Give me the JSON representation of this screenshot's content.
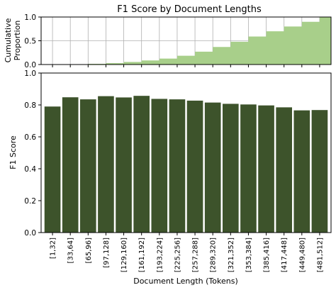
{
  "chart_data": [
    {
      "type": "area",
      "title": "F1 Score by Document Lengths",
      "xlabel": "",
      "ylabel_lines": [
        "Cumulative",
        "Proportion"
      ],
      "ylim": [
        0,
        1.0
      ],
      "yticks": [
        "0.0",
        "0.5",
        "1.0"
      ],
      "grid": true,
      "step": "post",
      "color": "#a8cf8a",
      "categories": [
        "[1,32]",
        "[33,64]",
        "[65,96]",
        "[97,128]",
        "[129,160]",
        "[161,192]",
        "[193,224]",
        "[225,256]",
        "[257,288]",
        "[289,320]",
        "[321,352]",
        "[353,384]",
        "[385,416]",
        "[417,448]",
        "[449,480]",
        "[481,512]"
      ],
      "values": [
        0.0,
        0.005,
        0.015,
        0.03,
        0.055,
        0.085,
        0.125,
        0.185,
        0.27,
        0.37,
        0.48,
        0.59,
        0.7,
        0.8,
        0.9,
        1.0
      ]
    },
    {
      "type": "bar",
      "xlabel": "Document Length (Tokens)",
      "ylabel": "F1 Score",
      "ylim": [
        0,
        1.0
      ],
      "yticks": [
        "0.0",
        "0.2",
        "0.4",
        "0.6",
        "0.8",
        "1.0"
      ],
      "grid": false,
      "color": "#3d532b",
      "categories": [
        "[1,32]",
        "[33,64]",
        "[65,96]",
        "[97,128]",
        "[129,160]",
        "[161,192]",
        "[193,224]",
        "[225,256]",
        "[257,288]",
        "[289,320]",
        "[321,352]",
        "[353,384]",
        "[385,416]",
        "[417,448]",
        "[449,480]",
        "[481,512]"
      ],
      "values": [
        0.79,
        0.848,
        0.835,
        0.855,
        0.847,
        0.857,
        0.838,
        0.835,
        0.827,
        0.815,
        0.807,
        0.803,
        0.797,
        0.785,
        0.766,
        0.768
      ]
    }
  ]
}
